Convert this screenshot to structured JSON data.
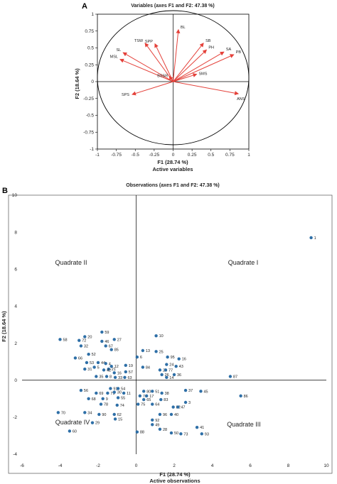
{
  "colors": {
    "arrow": "#e4413a",
    "point": "#2e6fa7",
    "axis": "#000000",
    "frame": "#555555"
  },
  "chart_data": [
    {
      "panel": "A",
      "type": "scatter",
      "title": "Variables (axes F1 and F2: 47.38 %)",
      "xlabel": "F1 (28.74 %)",
      "xsub": "Active variables",
      "ylabel": "F2 (18.64 %)",
      "xlim": [
        -1,
        1
      ],
      "ylim": [
        -1,
        1
      ],
      "xticks": [
        "-1",
        "-0.75",
        "-0.5",
        "-0.25",
        "0",
        "0.25",
        "0.5",
        "0.75",
        "1"
      ],
      "yticks": [
        "1",
        "0.75",
        "0.5",
        "0.25",
        "0",
        "-0.25",
        "-0.5",
        "-0.75",
        "-1"
      ],
      "circle": true,
      "variables": [
        {
          "name": "BL",
          "x": 0.07,
          "y": 0.77
        },
        {
          "name": "SB",
          "x": 0.4,
          "y": 0.57
        },
        {
          "name": "PH",
          "x": 0.44,
          "y": 0.47
        },
        {
          "name": "SA",
          "x": 0.67,
          "y": 0.44
        },
        {
          "name": "PB",
          "x": 0.8,
          "y": 0.4
        },
        {
          "name": "SMS",
          "x": 0.31,
          "y": 0.11
        },
        {
          "name": "ANS",
          "x": 0.86,
          "y": -0.18
        },
        {
          "name": "TSW",
          "x": -0.37,
          "y": 0.57
        },
        {
          "name": "SPP",
          "x": -0.24,
          "y": 0.56
        },
        {
          "name": "SL",
          "x": -0.66,
          "y": 0.43
        },
        {
          "name": "MSL",
          "x": -0.7,
          "y": 0.33
        },
        {
          "name": "BSSR",
          "x": -0.05,
          "y": 0.08
        },
        {
          "name": "SPS",
          "x": -0.54,
          "y": -0.19
        }
      ]
    },
    {
      "panel": "B",
      "type": "scatter",
      "title": "Observations (axes F1 and F2: 47.38 %)",
      "xlabel": "F1 (28.74 %)",
      "xsub": "Active observations",
      "ylabel": "F2 (18.64 %)",
      "xlim": [
        -6,
        10
      ],
      "ylim": [
        -4,
        10
      ],
      "xticks": [
        "-6",
        "-4",
        "-2",
        "0",
        "2",
        "4",
        "6",
        "8",
        "10"
      ],
      "yticks": [
        "10",
        "8",
        "6",
        "4",
        "2",
        "0",
        "-2",
        "-4"
      ],
      "quadrants": [
        "Quadrate I",
        "Quadrate II",
        "Quadrate III",
        "Quadrate IV"
      ],
      "points": [
        {
          "id": "1",
          "x": 9.2,
          "y": 7.7
        },
        {
          "id": "58",
          "x": -4.0,
          "y": 2.2
        },
        {
          "id": "20",
          "x": -2.7,
          "y": 2.35
        },
        {
          "id": "59",
          "x": -1.8,
          "y": 2.6
        },
        {
          "id": "27",
          "x": -1.15,
          "y": 2.2
        },
        {
          "id": "72",
          "x": -3.0,
          "y": 2.15
        },
        {
          "id": "46",
          "x": -1.8,
          "y": 2.1
        },
        {
          "id": "67",
          "x": -1.6,
          "y": 1.85
        },
        {
          "id": "32",
          "x": -2.9,
          "y": 1.85
        },
        {
          "id": "85",
          "x": -1.3,
          "y": 1.65
        },
        {
          "id": "52",
          "x": -2.5,
          "y": 1.4
        },
        {
          "id": "66",
          "x": -3.2,
          "y": 1.2
        },
        {
          "id": "53",
          "x": -2.6,
          "y": 0.95
        },
        {
          "id": "44",
          "x": -2.0,
          "y": 0.95
        },
        {
          "id": "31",
          "x": -2.7,
          "y": 0.6
        },
        {
          "id": "5",
          "x": -2.2,
          "y": 0.7
        },
        {
          "id": "4",
          "x": -1.6,
          "y": 0.9
        },
        {
          "id": "12",
          "x": -1.3,
          "y": 0.75
        },
        {
          "id": "21",
          "x": -1.45,
          "y": 0.6
        },
        {
          "id": "42",
          "x": -1.7,
          "y": 0.55
        },
        {
          "id": "16",
          "x": -1.15,
          "y": 0.4
        },
        {
          "id": "57",
          "x": -0.55,
          "y": 0.45
        },
        {
          "id": "19",
          "x": -0.55,
          "y": 0.8
        },
        {
          "id": "35",
          "x": -2.1,
          "y": 0.2
        },
        {
          "id": "8",
          "x": -1.55,
          "y": 0.2
        },
        {
          "id": "33",
          "x": -1.1,
          "y": 0.15
        },
        {
          "id": "63",
          "x": -0.6,
          "y": 0.15
        },
        {
          "id": "6",
          "x": 0.05,
          "y": 1.25
        },
        {
          "id": "13",
          "x": 0.35,
          "y": 1.6
        },
        {
          "id": "84",
          "x": 0.35,
          "y": 0.7
        },
        {
          "id": "10",
          "x": 1.05,
          "y": 2.4
        },
        {
          "id": "25",
          "x": 1.05,
          "y": 1.55
        },
        {
          "id": "24",
          "x": 1.6,
          "y": 0.85
        },
        {
          "id": "16",
          "x": 2.25,
          "y": 1.15
        },
        {
          "id": "43",
          "x": 2.1,
          "y": 0.75
        },
        {
          "id": "23",
          "x": 1.25,
          "y": 0.55
        },
        {
          "id": "77",
          "x": 1.55,
          "y": 0.55
        },
        {
          "id": "26",
          "x": 1.35,
          "y": 0.3
        },
        {
          "id": "14",
          "x": 1.6,
          "y": 0.15
        },
        {
          "id": "36",
          "x": 2.0,
          "y": 0.3
        },
        {
          "id": "87",
          "x": 4.95,
          "y": 0.2
        },
        {
          "id": "95",
          "x": 1.65,
          "y": 1.25
        },
        {
          "id": "91",
          "x": -1.35,
          "y": -0.45
        },
        {
          "id": "54",
          "x": -0.95,
          "y": -0.45
        },
        {
          "id": "56",
          "x": -2.9,
          "y": -0.55
        },
        {
          "id": "69",
          "x": -2.1,
          "y": -0.7
        },
        {
          "id": "71",
          "x": -1.5,
          "y": -0.7
        },
        {
          "id": "30",
          "x": -1.15,
          "y": -0.65
        },
        {
          "id": "11",
          "x": -0.65,
          "y": -0.7
        },
        {
          "id": "68",
          "x": -2.5,
          "y": -1.0
        },
        {
          "id": "9",
          "x": -1.75,
          "y": -1.0
        },
        {
          "id": "55",
          "x": -0.95,
          "y": -0.95
        },
        {
          "id": "78",
          "x": -1.85,
          "y": -1.3
        },
        {
          "id": "74",
          "x": -1.0,
          "y": -1.35
        },
        {
          "id": "34",
          "x": -2.7,
          "y": -1.75
        },
        {
          "id": "90",
          "x": -1.95,
          "y": -1.85
        },
        {
          "id": "62",
          "x": -1.15,
          "y": -1.85
        },
        {
          "id": "15",
          "x": -1.1,
          "y": -2.1
        },
        {
          "id": "70",
          "x": -4.1,
          "y": -1.75
        },
        {
          "id": "29",
          "x": -2.3,
          "y": -2.3
        },
        {
          "id": "60",
          "x": -3.5,
          "y": -2.75
        },
        {
          "id": "88",
          "x": 0.05,
          "y": -2.8
        },
        {
          "id": "80",
          "x": 0.4,
          "y": -0.6
        },
        {
          "id": "51",
          "x": 0.85,
          "y": -0.6
        },
        {
          "id": "76",
          "x": 0.2,
          "y": -0.85
        },
        {
          "id": "17",
          "x": 0.55,
          "y": -0.85
        },
        {
          "id": "38",
          "x": 1.35,
          "y": -0.7
        },
        {
          "id": "65",
          "x": 0.4,
          "y": -1.05
        },
        {
          "id": "83",
          "x": 1.3,
          "y": -1.05
        },
        {
          "id": "75",
          "x": 0.1,
          "y": -1.3
        },
        {
          "id": "64",
          "x": 0.85,
          "y": -1.3
        },
        {
          "id": "82",
          "x": 1.95,
          "y": -1.45
        },
        {
          "id": "37",
          "x": 2.6,
          "y": -0.55
        },
        {
          "id": "45",
          "x": 3.4,
          "y": -0.6
        },
        {
          "id": "3",
          "x": 2.6,
          "y": -1.2
        },
        {
          "id": "47",
          "x": 2.2,
          "y": -1.45
        },
        {
          "id": "86",
          "x": 5.5,
          "y": -0.85
        },
        {
          "id": "40",
          "x": 1.85,
          "y": -1.85
        },
        {
          "id": "96",
          "x": 1.25,
          "y": -1.85
        },
        {
          "id": "92",
          "x": 0.85,
          "y": -2.15
        },
        {
          "id": "49",
          "x": 0.85,
          "y": -2.4
        },
        {
          "id": "28",
          "x": 1.25,
          "y": -2.65
        },
        {
          "id": "50",
          "x": 1.85,
          "y": -2.85
        },
        {
          "id": "73",
          "x": 2.35,
          "y": -2.9
        },
        {
          "id": "41",
          "x": 3.2,
          "y": -2.55
        },
        {
          "id": "93",
          "x": 3.45,
          "y": -2.9
        }
      ]
    }
  ]
}
